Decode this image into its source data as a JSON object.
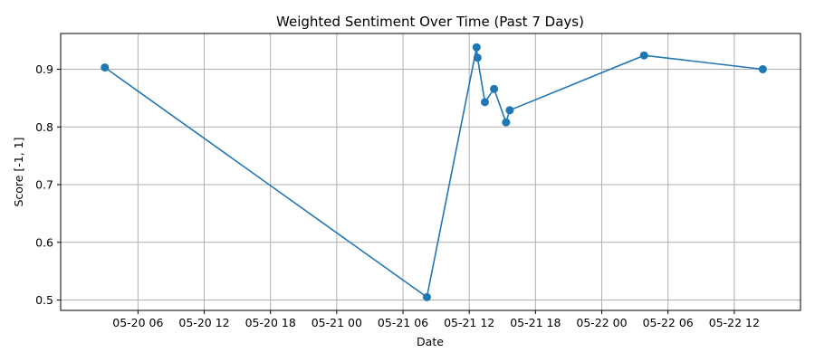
{
  "chart_data": {
    "type": "line",
    "title": "Weighted Sentiment Over Time (Past 7 Days)",
    "xlabel": "Date",
    "ylabel": "Score [-1, 1]",
    "xlim": [
      "2025-05-19T23:00",
      "2025-05-22T18:00"
    ],
    "ylim": [
      0.482,
      0.962
    ],
    "grid": true,
    "line_color": "#1f77b4",
    "marker": "circle",
    "x_ticks": [
      {
        "value": "2025-05-20T06:00",
        "label": "05-20 06"
      },
      {
        "value": "2025-05-20T12:00",
        "label": "05-20 12"
      },
      {
        "value": "2025-05-20T18:00",
        "label": "05-20 18"
      },
      {
        "value": "2025-05-21T00:00",
        "label": "05-21 00"
      },
      {
        "value": "2025-05-21T06:00",
        "label": "05-21 06"
      },
      {
        "value": "2025-05-21T12:00",
        "label": "05-21 12"
      },
      {
        "value": "2025-05-21T18:00",
        "label": "05-21 18"
      },
      {
        "value": "2025-05-22T00:00",
        "label": "05-22 00"
      },
      {
        "value": "2025-05-22T06:00",
        "label": "05-22 06"
      },
      {
        "value": "2025-05-22T12:00",
        "label": "05-22 12"
      }
    ],
    "y_ticks": [
      {
        "value": 0.5,
        "label": "0.5"
      },
      {
        "value": 0.6,
        "label": "0.6"
      },
      {
        "value": 0.7,
        "label": "0.7"
      },
      {
        "value": 0.8,
        "label": "0.8"
      },
      {
        "value": 0.9,
        "label": "0.9"
      }
    ],
    "series": [
      {
        "points": [
          {
            "x": "2025-05-20T03:00",
            "y": 0.903
          },
          {
            "x": "2025-05-21T08:10",
            "y": 0.505
          },
          {
            "x": "2025-05-21T12:40",
            "y": 0.938
          },
          {
            "x": "2025-05-21T12:45",
            "y": 0.92
          },
          {
            "x": "2025-05-21T13:25",
            "y": 0.843
          },
          {
            "x": "2025-05-21T14:15",
            "y": 0.866
          },
          {
            "x": "2025-05-21T15:20",
            "y": 0.808
          },
          {
            "x": "2025-05-21T15:40",
            "y": 0.829
          },
          {
            "x": "2025-05-22T03:50",
            "y": 0.924
          },
          {
            "x": "2025-05-22T14:35",
            "y": 0.9
          }
        ]
      }
    ]
  }
}
